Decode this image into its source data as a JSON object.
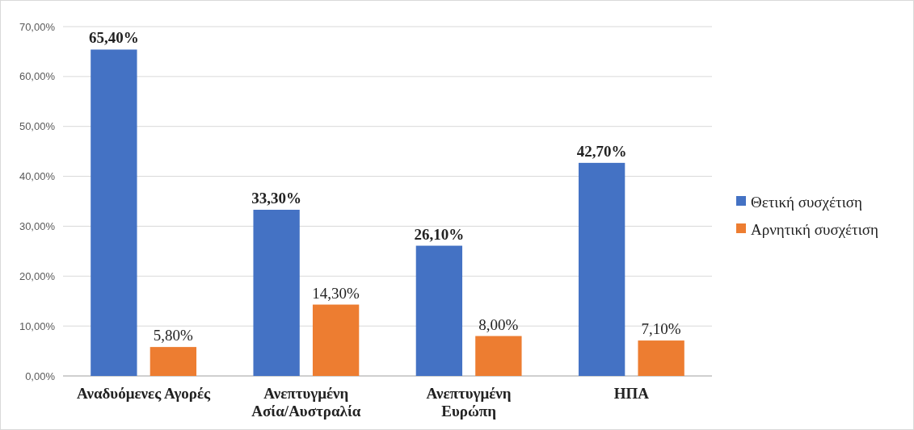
{
  "chart_data": {
    "type": "bar",
    "categories": [
      "Αναδυόμενες Αγορές",
      "Ανεπτυγμένη\nΑσία/Αυστραλία",
      "Ανεπτυγμένη\nΕυρώπη",
      "ΗΠΑ"
    ],
    "series": [
      {
        "name": "Θετική συσχέτιση",
        "color": "#4472c4",
        "values": [
          65.4,
          33.3,
          26.1,
          42.7
        ],
        "value_labels": [
          "65,40%",
          "33,30%",
          "26,10%",
          "42,70%"
        ]
      },
      {
        "name": "Αρνητική συσχέτιση",
        "color": "#ed7d31",
        "values": [
          5.8,
          14.3,
          8.0,
          7.1
        ],
        "value_labels": [
          "5,80%",
          "14,30%",
          "8,00%",
          "7,10%"
        ]
      }
    ],
    "ylim": [
      0,
      70
    ],
    "yticks": [
      {
        "value": 0,
        "label": "0,00%"
      },
      {
        "value": 10,
        "label": "10,00%"
      },
      {
        "value": 20,
        "label": "20,00%"
      },
      {
        "value": 30,
        "label": "30,00%"
      },
      {
        "value": 40,
        "label": "40,00%"
      },
      {
        "value": 50,
        "label": "50,00%"
      },
      {
        "value": 60,
        "label": "60,00%"
      },
      {
        "value": 70,
        "label": "70,00%"
      }
    ],
    "grid": "y",
    "legend": "right"
  }
}
